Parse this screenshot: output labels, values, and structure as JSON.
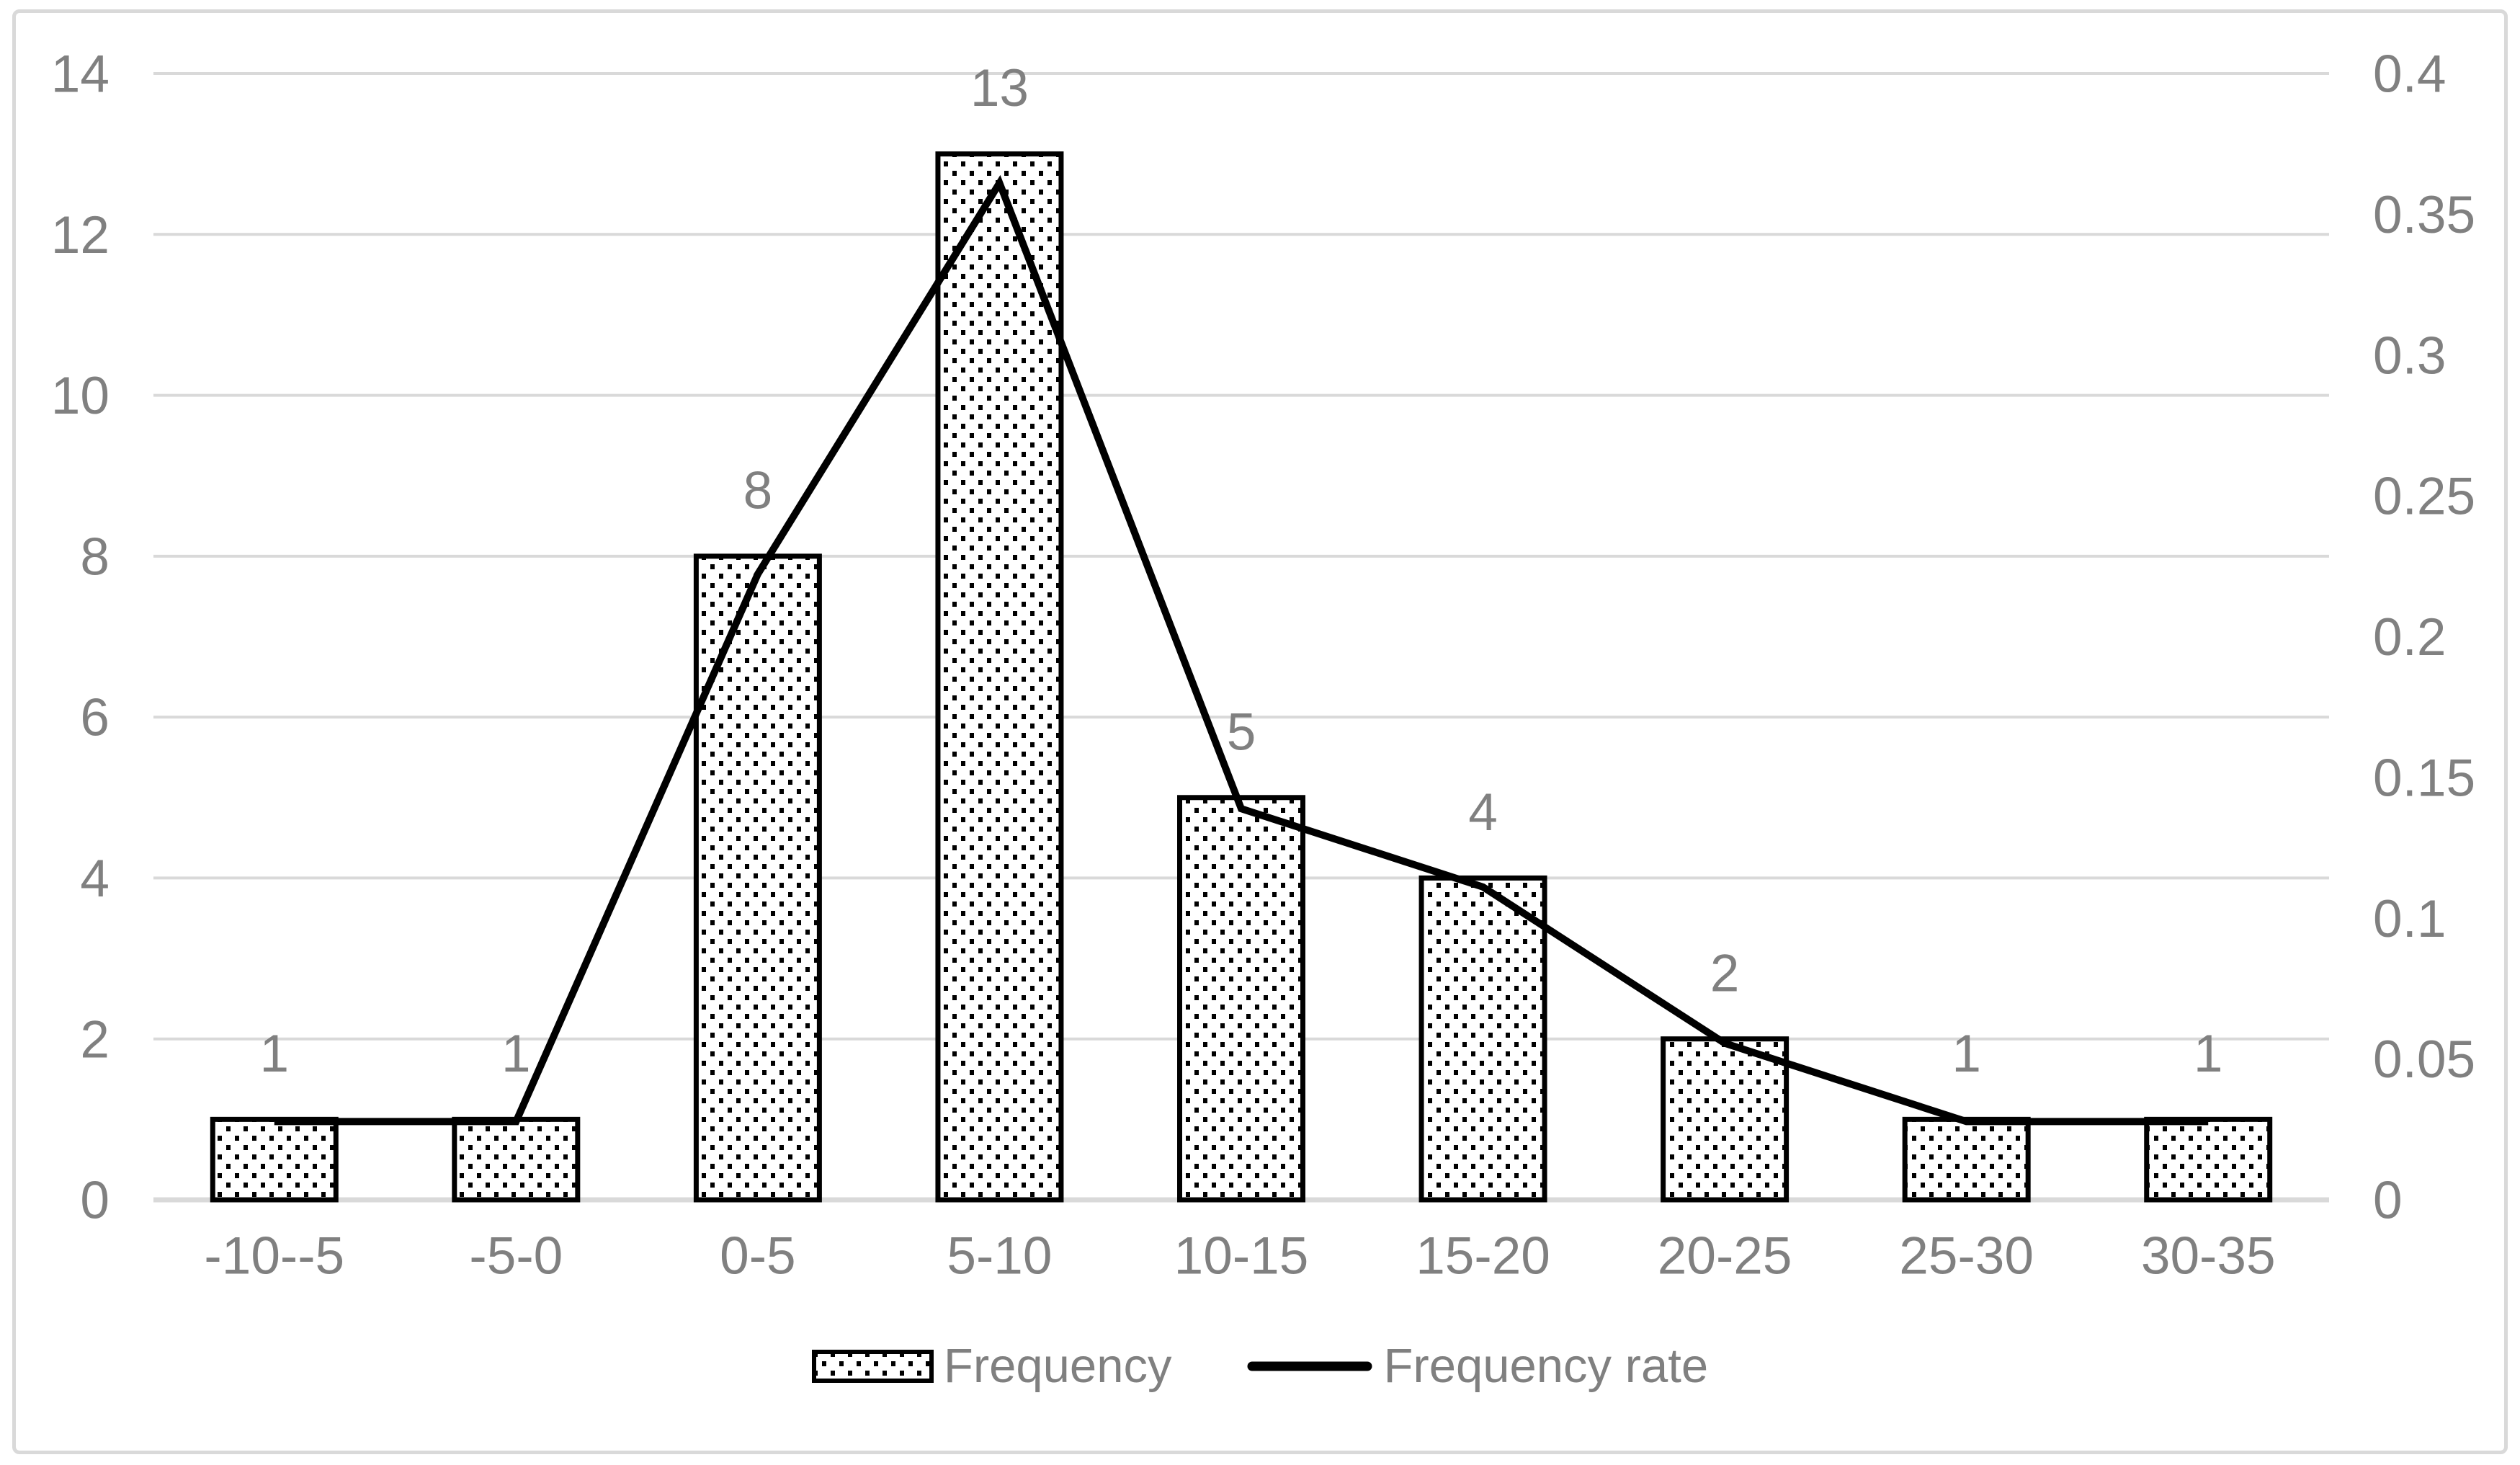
{
  "chart_data": {
    "type": "combo",
    "title": "",
    "categories": [
      "-10--5",
      "-5-0",
      "0-5",
      "5-10",
      "10-15",
      "15-20",
      "20-25",
      "25-30",
      "30-35"
    ],
    "series": [
      {
        "name": "Frequency",
        "type": "bar",
        "axis": "left",
        "values": [
          1,
          1,
          8,
          13,
          5,
          4,
          2,
          1,
          1
        ],
        "data_labels": [
          "1",
          "1",
          "8",
          "13",
          "5",
          "4",
          "2",
          "1",
          "1"
        ],
        "swatch": "dotted-pattern-bar"
      },
      {
        "name": "Frequency rate",
        "type": "line",
        "axis": "right",
        "values": [
          0.0278,
          0.0278,
          0.2222,
          0.3611,
          0.1389,
          0.1111,
          0.0556,
          0.0278,
          0.0278
        ]
      }
    ],
    "left_axis": {
      "min": 0,
      "max": 14,
      "tick_labels": [
        "0",
        "2",
        "4",
        "6",
        "8",
        "10",
        "12",
        "14"
      ]
    },
    "right_axis": {
      "min": 0,
      "max": 0.4,
      "tick_labels": [
        "0",
        "0.05",
        "0.1",
        "0.15",
        "0.2",
        "0.25",
        "0.3",
        "0.35",
        "0.4"
      ]
    },
    "xlabel": "",
    "ylabel": "",
    "grid": true,
    "legend_position": "bottom",
    "colors": {
      "bar_fill": "#ffffff",
      "bar_dots": "#000000",
      "bar_border": "#000000",
      "line": "#000000",
      "grid": "#d9d9d9",
      "axis_text": "#808080",
      "chart_border": "#d9d9d9",
      "background": "#ffffff"
    }
  }
}
